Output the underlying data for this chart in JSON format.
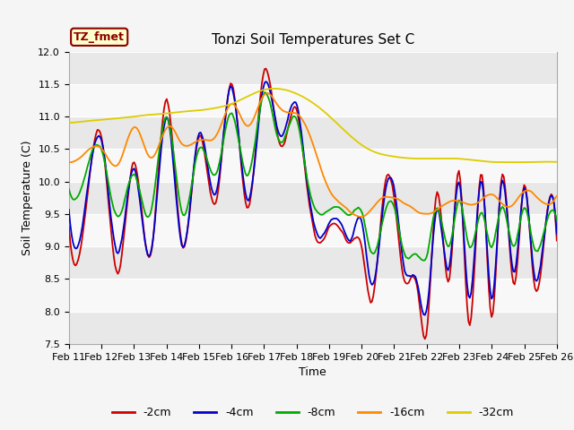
{
  "title": "Tonzi Soil Temperatures Set C",
  "xlabel": "Time",
  "ylabel": "Soil Temperature (C)",
  "ylim": [
    7.5,
    12.0
  ],
  "yticks": [
    7.5,
    8.0,
    8.5,
    9.0,
    9.5,
    10.0,
    10.5,
    11.0,
    11.5,
    12.0
  ],
  "label_box_text": "TZ_fmet",
  "fig_bg_color": "#f5f5f5",
  "plot_bg_color": "#ffffff",
  "series": {
    "-2cm": {
      "color": "#cc0000",
      "label": "-2cm"
    },
    "-4cm": {
      "color": "#0000cc",
      "label": "-4cm"
    },
    "-8cm": {
      "color": "#00aa00",
      "label": "-8cm"
    },
    "-16cm": {
      "color": "#ff8800",
      "label": "-16cm"
    },
    "-32cm": {
      "color": "#ddcc00",
      "label": "-32cm"
    }
  },
  "x_tick_labels": [
    "Feb 11",
    "Feb 12",
    "Feb 13",
    "Feb 14",
    "Feb 15",
    "Feb 16",
    "Feb 17",
    "Feb 18",
    "Feb 19",
    "Feb 20",
    "Feb 21",
    "Feb 22",
    "Feb 23",
    "Feb 24",
    "Feb 25",
    "Feb 26"
  ],
  "n_points": 360,
  "title_fontsize": 11,
  "axis_label_fontsize": 9,
  "tick_fontsize": 8,
  "legend_fontsize": 9,
  "band_colors": [
    "#e8e8e8",
    "#f8f8f8"
  ]
}
